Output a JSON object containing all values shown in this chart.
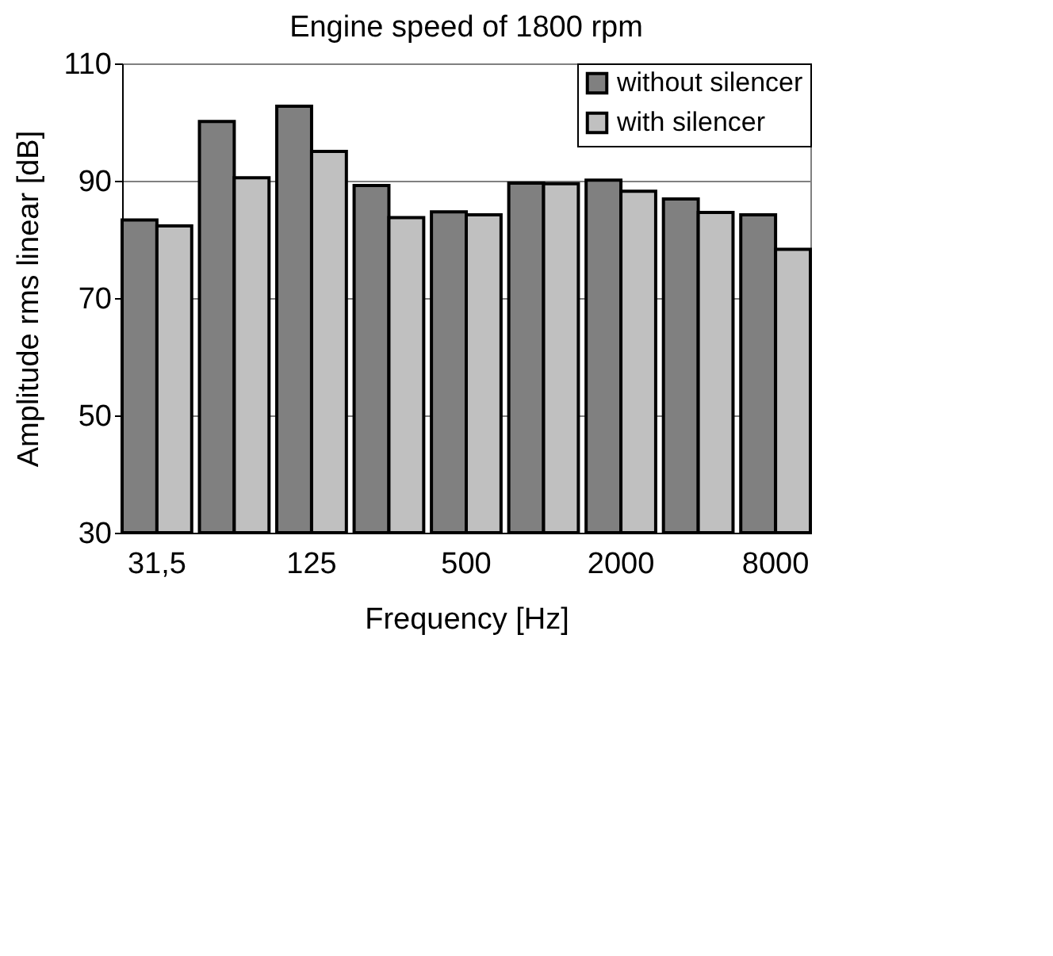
{
  "chart_data": {
    "type": "bar",
    "title": "Engine speed of 1800 rpm",
    "xlabel": "Frequency [Hz]",
    "ylabel": "Amplitude rms linear [dB]",
    "categories": [
      "31,5",
      null,
      "125",
      null,
      "500",
      null,
      "2000",
      null,
      "8000"
    ],
    "series": [
      {
        "name": "without silencer",
        "color": "#808080",
        "values": [
          83.3,
          100.1,
          102.7,
          89.2,
          84.7,
          89.6,
          90.1,
          86.9,
          84.2
        ]
      },
      {
        "name": "with silencer",
        "color": "#c0c0c0",
        "values": [
          82.3,
          90.5,
          95.0,
          83.7,
          84.2,
          89.5,
          88.2,
          84.6,
          78.3
        ]
      }
    ],
    "ylim": [
      30,
      110
    ],
    "yticks": [
      30,
      50,
      70,
      90,
      110
    ],
    "grid": "y",
    "legend": "top right"
  }
}
